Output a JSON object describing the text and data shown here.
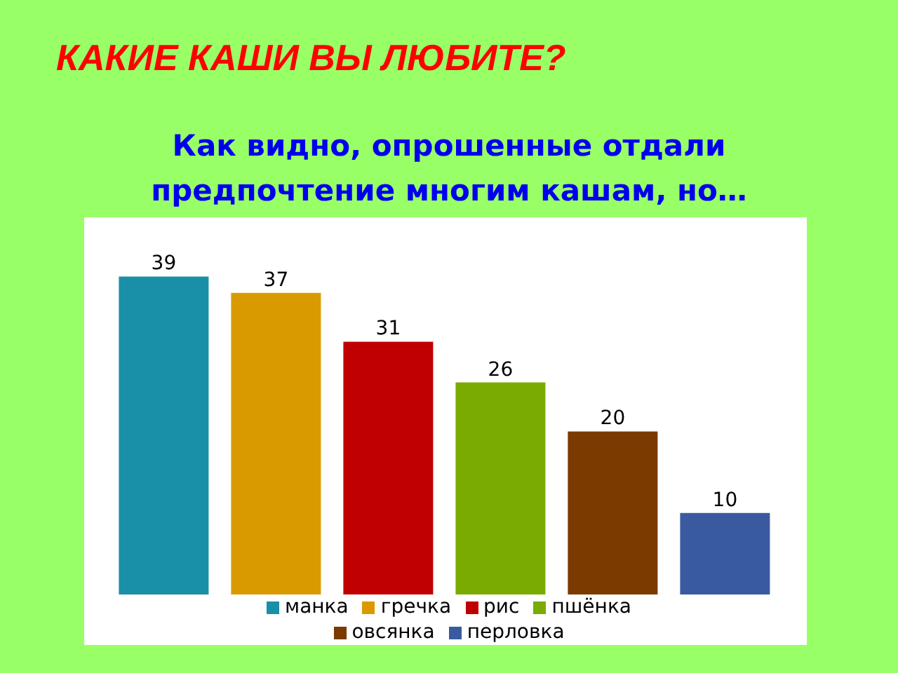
{
  "chart_data": {
    "type": "bar",
    "title": "КАКИЕ КАШИ ВЫ ЛЮБИТЕ?",
    "subtitle": "Как видно, опрошенные отдали предпочтение многим кашам, но…",
    "categories": [
      null
    ],
    "series": [
      {
        "name": "манка",
        "color": "#1a8fa8",
        "values": [
          39
        ]
      },
      {
        "name": "гречка",
        "color": "#d99a00",
        "values": [
          37
        ]
      },
      {
        "name": "рис",
        "color": "#c00000",
        "values": [
          31
        ]
      },
      {
        "name": "пшёнка",
        "color": "#7aab00",
        "values": [
          26
        ]
      },
      {
        "name": "овсянка",
        "color": "#7a3a00",
        "values": [
          20
        ]
      },
      {
        "name": "перловка",
        "color": "#3a5aa0",
        "values": [
          10
        ]
      }
    ],
    "data_labels": true,
    "legend": "bottom",
    "grid": false
  }
}
